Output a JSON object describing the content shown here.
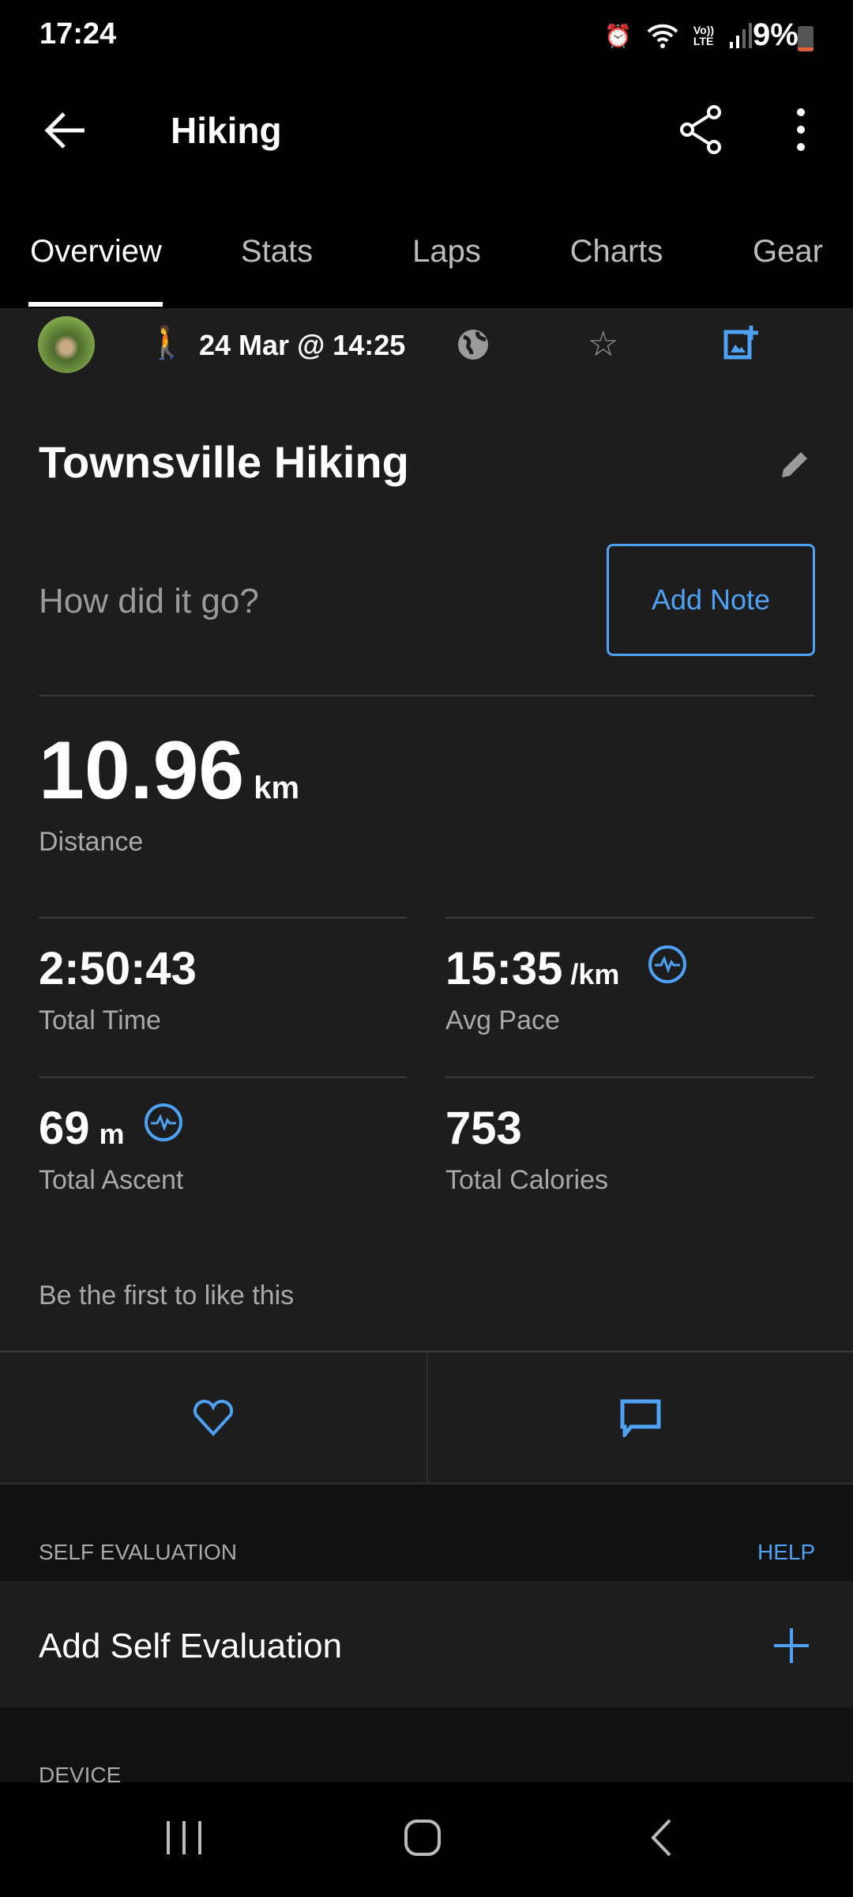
{
  "status_bar": {
    "time": "17:24",
    "battery": "9%",
    "icons": [
      "alarm-icon",
      "wifi-icon",
      "volte-icon",
      "signal-icon",
      "battery-icon"
    ]
  },
  "app_bar": {
    "title": "Hiking",
    "icons": [
      "back-arrow-icon",
      "share-icon",
      "more-vert-icon"
    ]
  },
  "tabs": [
    {
      "label": "Overview",
      "active": true
    },
    {
      "label": "Stats"
    },
    {
      "label": "Laps"
    },
    {
      "label": "Charts"
    },
    {
      "label": "Gear"
    }
  ],
  "activity": {
    "date": "24 Mar @ 14:25",
    "icons": [
      "avatar",
      "hiking-icon",
      "globe-icon",
      "star-icon",
      "add-photo-icon"
    ],
    "title": "Townsville Hiking",
    "note_prompt": "How did it go?",
    "add_note": "Add Note"
  },
  "distance": {
    "value": "10.96",
    "unit": "km",
    "label": "Distance"
  },
  "stats": [
    {
      "value": "2:50:43",
      "unit": "",
      "label": "Total Time"
    },
    {
      "value": "15:35",
      "unit": "/km",
      "label": "Avg Pace",
      "badge": "pulse-icon"
    },
    {
      "value": "69",
      "unit": "m",
      "label": "Total Ascent",
      "badge": "pulse-icon"
    },
    {
      "value": "753",
      "unit": "",
      "label": "Total Calories"
    }
  ],
  "likes_text": "Be the first to like this",
  "self_evaluation": {
    "header": "SELF EVALUATION",
    "help": "HELP",
    "row": "Add Self Evaluation"
  },
  "device": {
    "header": "DEVICE"
  },
  "colors": {
    "accent": "#4ea1f3",
    "background": "#1c1d1c",
    "section": "#111111"
  }
}
